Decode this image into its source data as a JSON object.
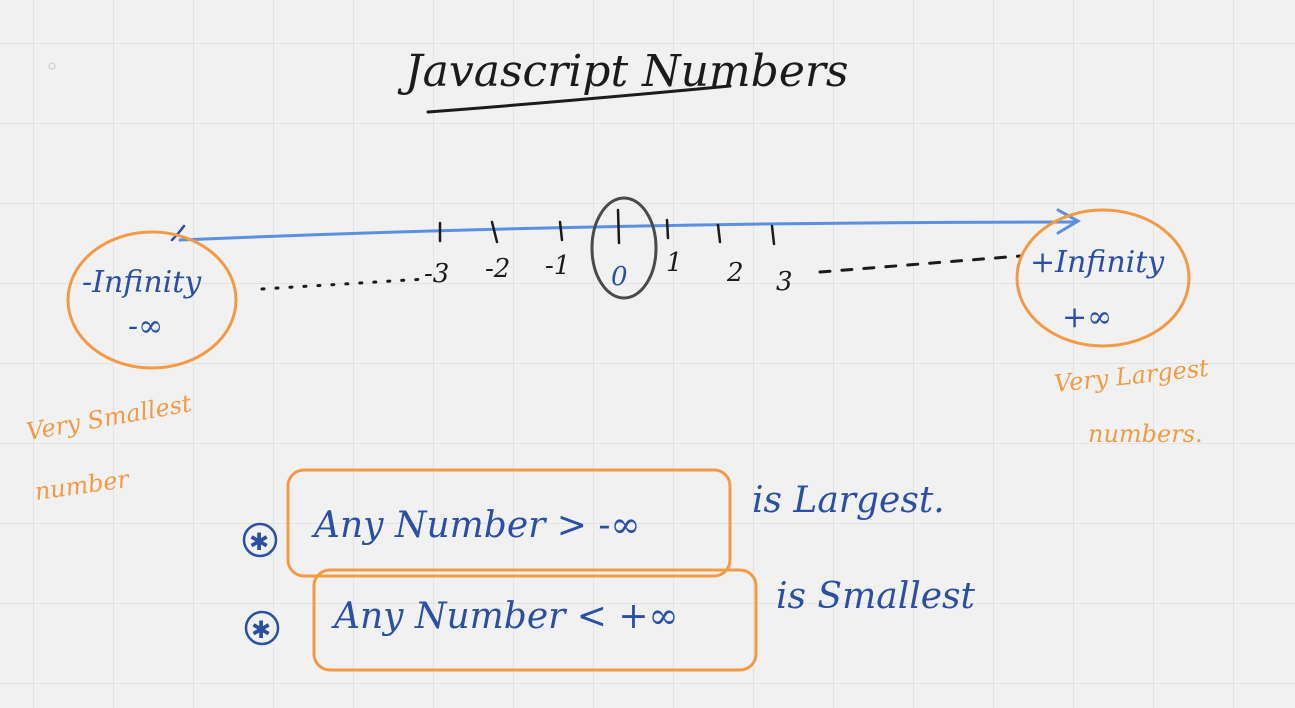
{
  "title": "Javascript Numbers",
  "number_line": {
    "ticks": [
      "-3",
      "-2",
      "-1",
      "0",
      "1",
      "2",
      "3"
    ],
    "left_end": {
      "label": "-Infinity",
      "symbol": "-∞",
      "note_line1": "Very Smallest",
      "note_line2": "number"
    },
    "right_end": {
      "label": "+Infinity",
      "symbol": "+∞",
      "note_line1": "Very Largest",
      "note_line2": "numbers."
    }
  },
  "statements": [
    {
      "marker": "✱",
      "text": "Any Number > -∞",
      "suffix": "is Largest."
    },
    {
      "marker": "✱",
      "text": "Any Number < +∞",
      "suffix": "is Smallest"
    }
  ],
  "colors": {
    "ink_black": "#1b1b1b",
    "ink_blue": "#2a4fa3",
    "line_blue": "#5b8fe0",
    "highlight_orange": "#f39a45",
    "circle_gray": "#4a4a4a",
    "background": "#f1f1f1"
  }
}
